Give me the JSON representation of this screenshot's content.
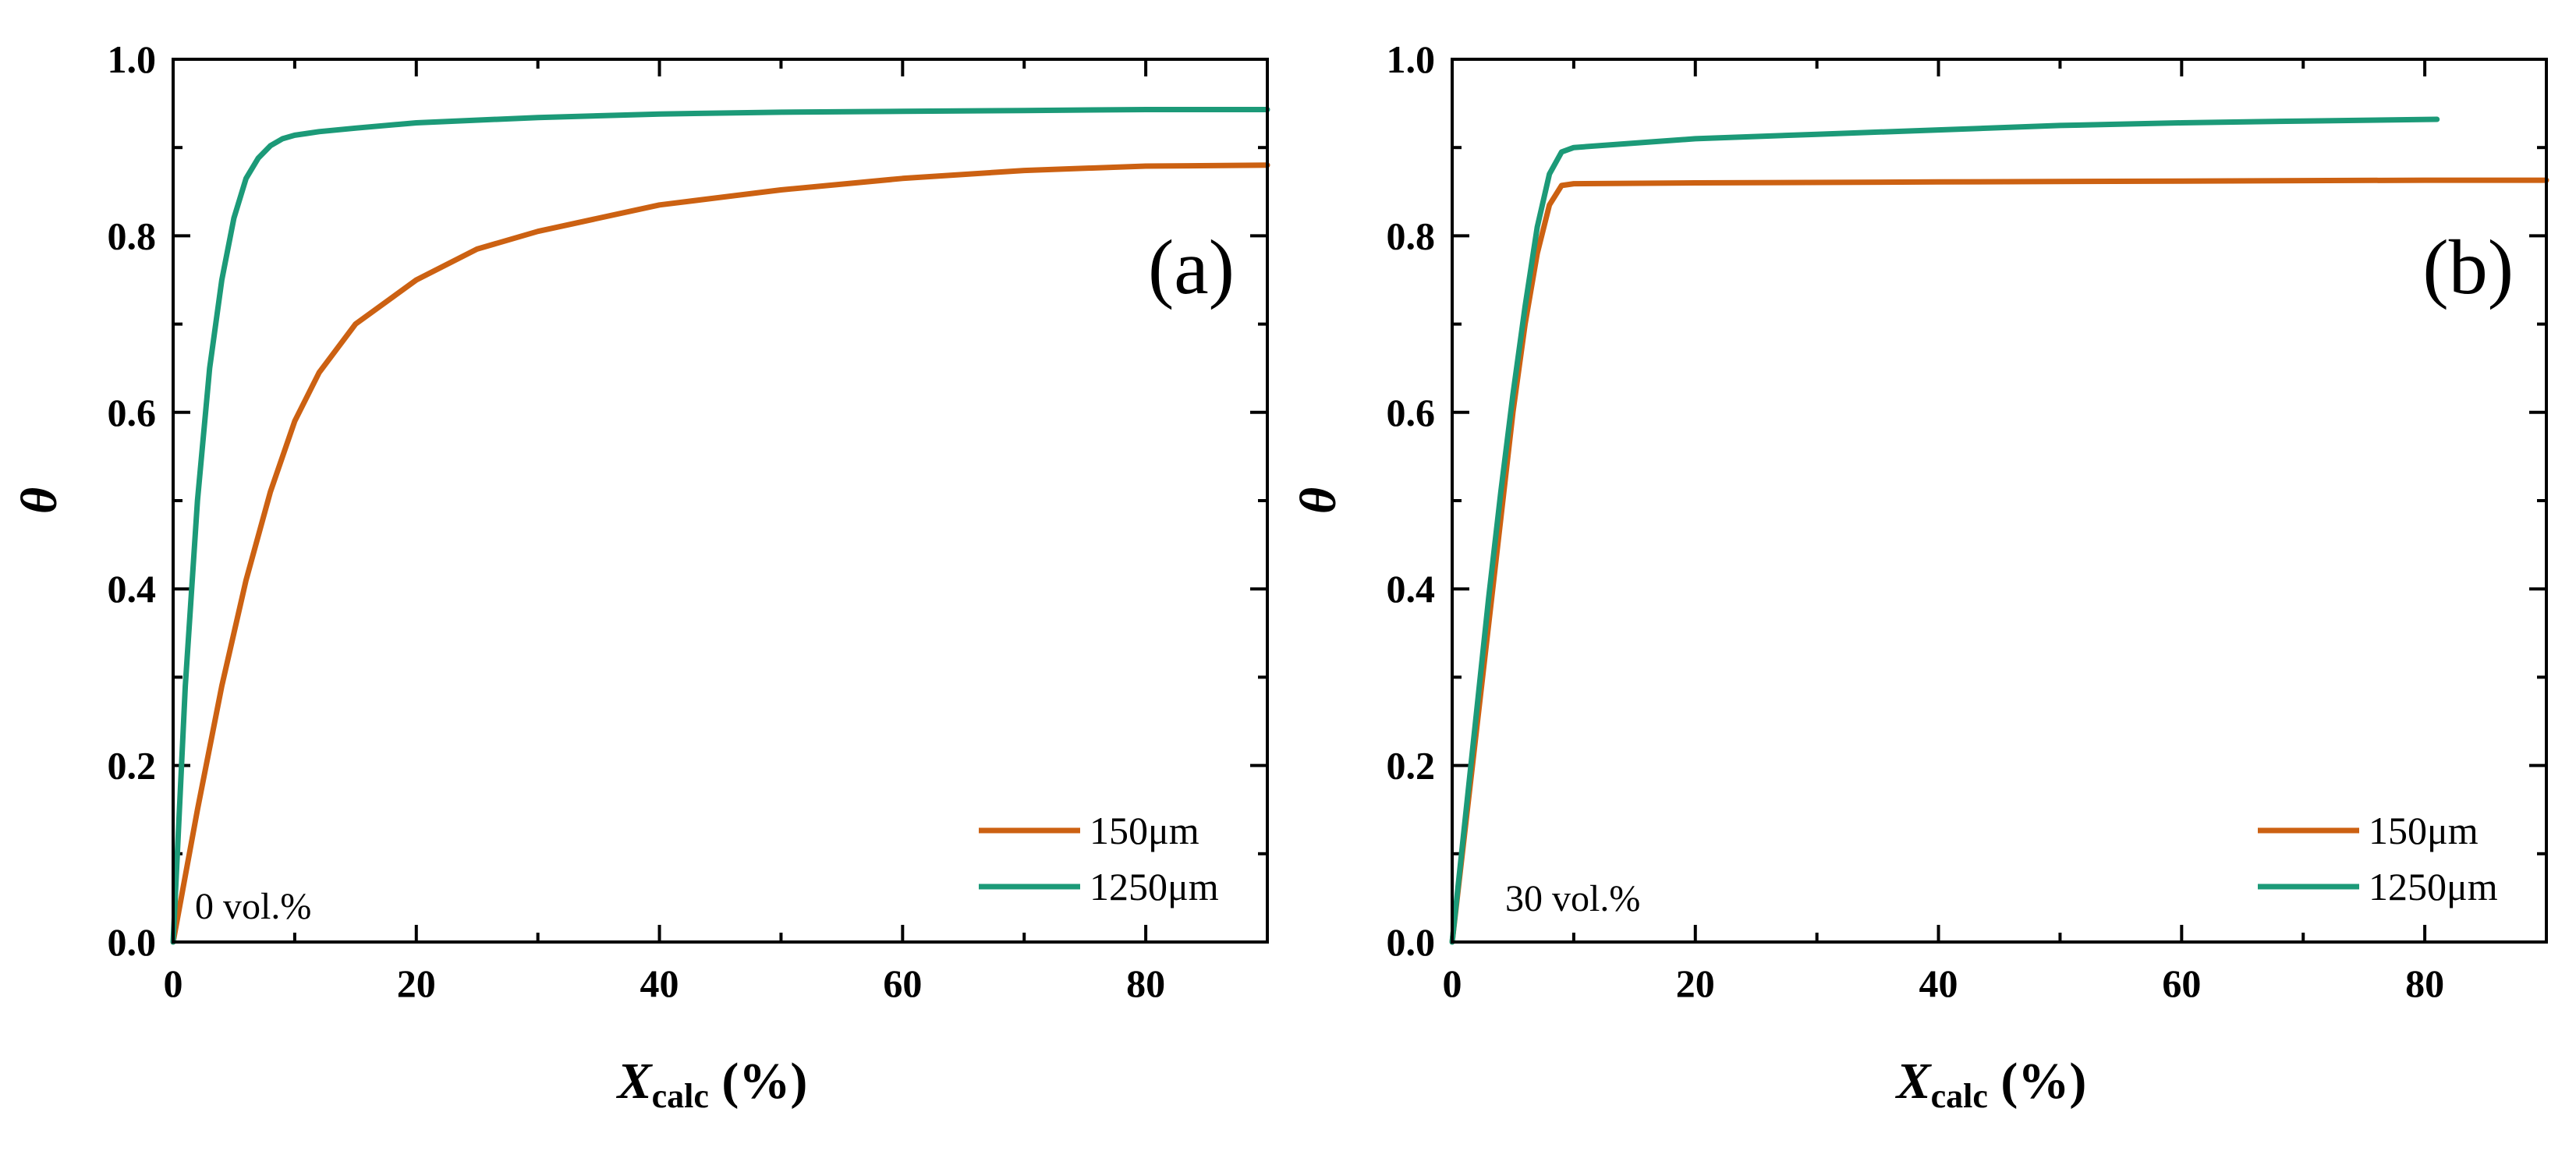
{
  "figure_title": "",
  "colors": {
    "series_150": "#cc6112",
    "series_1250": "#1c9a78",
    "axes": "#000000"
  },
  "chart_data": [
    {
      "type": "line",
      "panel_label": "(a)",
      "annotation": "0 vol.%",
      "title": "",
      "xlabel": {
        "main": "X",
        "sub": "calc",
        "rest": " (%)"
      },
      "ylabel": "θ",
      "xlim": [
        0,
        90
      ],
      "ylim": [
        0,
        1.0
      ],
      "xticks": [
        0,
        20,
        40,
        60,
        80
      ],
      "xtick_labels": [
        "0",
        "20",
        "40",
        "60",
        "80"
      ],
      "yticks": [
        0,
        0.2,
        0.4,
        0.6,
        0.8,
        1.0
      ],
      "ytick_labels": [
        "0.0",
        "0.2",
        "0.4",
        "0.6",
        "0.8",
        "1.0"
      ],
      "legend_position": "bottom-right",
      "series": [
        {
          "name": "150μm",
          "color": "#cc6112",
          "x": [
            0,
            2,
            4,
            6,
            8,
            10,
            12,
            15,
            20,
            25,
            30,
            40,
            50,
            60,
            70,
            80,
            90
          ],
          "y": [
            0,
            0.15,
            0.29,
            0.41,
            0.51,
            0.59,
            0.645,
            0.7,
            0.75,
            0.785,
            0.805,
            0.835,
            0.852,
            0.865,
            0.874,
            0.879,
            0.88
          ]
        },
        {
          "name": "1250μm",
          "color": "#1c9a78",
          "x": [
            0,
            1,
            2,
            3,
            4,
            5,
            6,
            7,
            8,
            9,
            10,
            11,
            12,
            15,
            20,
            30,
            40,
            50,
            60,
            70,
            80,
            90
          ],
          "y": [
            0,
            0.29,
            0.5,
            0.65,
            0.75,
            0.82,
            0.865,
            0.888,
            0.902,
            0.91,
            0.914,
            0.916,
            0.918,
            0.922,
            0.928,
            0.934,
            0.938,
            0.94,
            0.941,
            0.942,
            0.943,
            0.943
          ]
        }
      ]
    },
    {
      "type": "line",
      "panel_label": "(b)",
      "annotation": "30 vol.%",
      "title": "",
      "xlabel": {
        "main": "X",
        "sub": "calc",
        "rest": " (%)"
      },
      "ylabel": "θ",
      "xlim": [
        0,
        90
      ],
      "ylim": [
        0,
        1.0
      ],
      "xticks": [
        0,
        20,
        40,
        60,
        80
      ],
      "xtick_labels": [
        "0",
        "20",
        "40",
        "60",
        "80"
      ],
      "yticks": [
        0,
        0.2,
        0.4,
        0.6,
        0.8,
        1.0
      ],
      "ytick_labels": [
        "0.0",
        "0.2",
        "0.4",
        "0.6",
        "0.8",
        "1.0"
      ],
      "legend_position": "bottom-right",
      "series": [
        {
          "name": "150μm",
          "color": "#cc6112",
          "x": [
            0,
            1,
            2,
            3,
            4,
            5,
            6,
            7,
            8,
            9,
            10,
            20,
            40,
            60,
            80,
            90
          ],
          "y": [
            0,
            0.12,
            0.24,
            0.36,
            0.48,
            0.6,
            0.7,
            0.78,
            0.835,
            0.857,
            0.859,
            0.86,
            0.861,
            0.862,
            0.863,
            0.863
          ]
        },
        {
          "name": "1250μm",
          "color": "#1c9a78",
          "x": [
            0,
            1,
            2,
            3,
            4,
            5,
            6,
            7,
            8,
            9,
            10,
            15,
            20,
            30,
            40,
            50,
            60,
            70,
            81
          ],
          "y": [
            0,
            0.13,
            0.26,
            0.39,
            0.51,
            0.62,
            0.72,
            0.81,
            0.87,
            0.895,
            0.9,
            0.905,
            0.91,
            0.915,
            0.92,
            0.925,
            0.928,
            0.93,
            0.932
          ]
        }
      ]
    }
  ]
}
